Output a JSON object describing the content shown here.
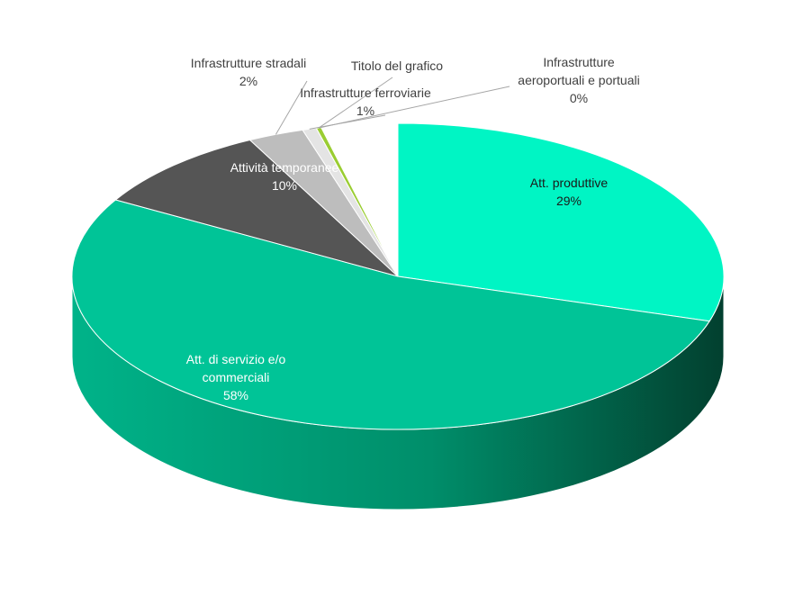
{
  "chart_data": {
    "type": "pie",
    "title": "Titolo del grafico",
    "style": "3d",
    "slices": [
      {
        "name": "Att. produttive",
        "value": 29,
        "label": "29%",
        "color": "#00F5C4"
      },
      {
        "name": "Att. di servizio e/o commerciali",
        "value": 58,
        "label": "58%",
        "color": "#00C497"
      },
      {
        "name": "Attività temporanee",
        "value": 10,
        "label": "10%",
        "color": "#555555"
      },
      {
        "name": "Infrastrutture stradali",
        "value": 2,
        "label": "2%",
        "color": "#BDBDBD"
      },
      {
        "name": "Infrastrutture ferroviarie",
        "value": 1,
        "label": "1%",
        "color": "#E4E4E4"
      },
      {
        "name": "Infrastrutture aeroportuali e portuali",
        "value": 0,
        "label": "0%",
        "color": "#9ACD32"
      }
    ]
  }
}
